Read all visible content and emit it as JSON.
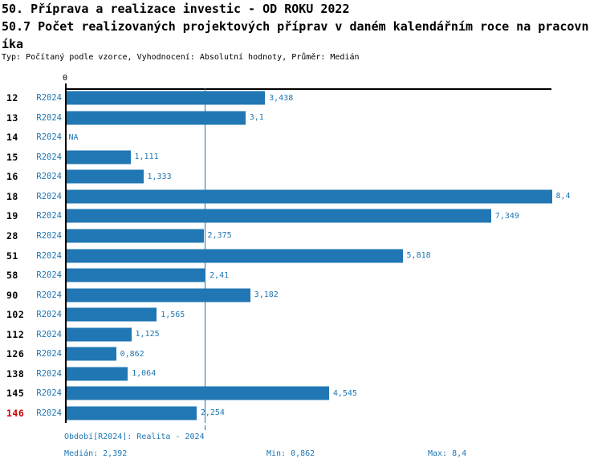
{
  "title": {
    "line1": "50. Příprava a realizace investic - OD ROKU 2022",
    "line2": "50.7 Počet realizovaných projektových příprav v daném kalendářním roce na pracovn",
    "line3": "íka"
  },
  "subtitle": "Typ: Počítaný podle vzorce, Vyhodnocení: Absolutní hodnoty, Průměr: Medián",
  "axis": {
    "zero_label": "0"
  },
  "chart_data": {
    "type": "bar",
    "orientation": "horizontal",
    "categories": [
      "12",
      "13",
      "14",
      "15",
      "16",
      "18",
      "19",
      "28",
      "51",
      "58",
      "90",
      "102",
      "112",
      "126",
      "138",
      "145",
      "146"
    ],
    "series_label": "R2024",
    "values": [
      3.438,
      3.1,
      null,
      1.111,
      1.333,
      8.4,
      7.349,
      2.375,
      5.818,
      2.41,
      3.182,
      1.565,
      1.125,
      0.862,
      1.064,
      4.545,
      2.254
    ],
    "value_labels": [
      "3,438",
      "3,1",
      "NA",
      "1,111",
      "1,333",
      "8,4",
      "7,349",
      "2,375",
      "5,818",
      "2,41",
      "3,182",
      "1,565",
      "1,125",
      "0,862",
      "1,064",
      "4,545",
      "2,254"
    ],
    "na_label": "NA",
    "highlighted_category": "146",
    "median": 2.392,
    "xlim": [
      0,
      8.4
    ],
    "grid": "median-line-only",
    "legend": "none",
    "bar_color": "#2077b4",
    "text_color": "#2077b4",
    "median_line_color": "#2077b4",
    "highlight_color": "#cc0000",
    "axis_color": "#000000"
  },
  "footer": {
    "period": "Období[R2024]: Realita - 2024",
    "median": "Medián: 2,392",
    "min": "Min: 0,862",
    "max": "Max: 8,4"
  }
}
